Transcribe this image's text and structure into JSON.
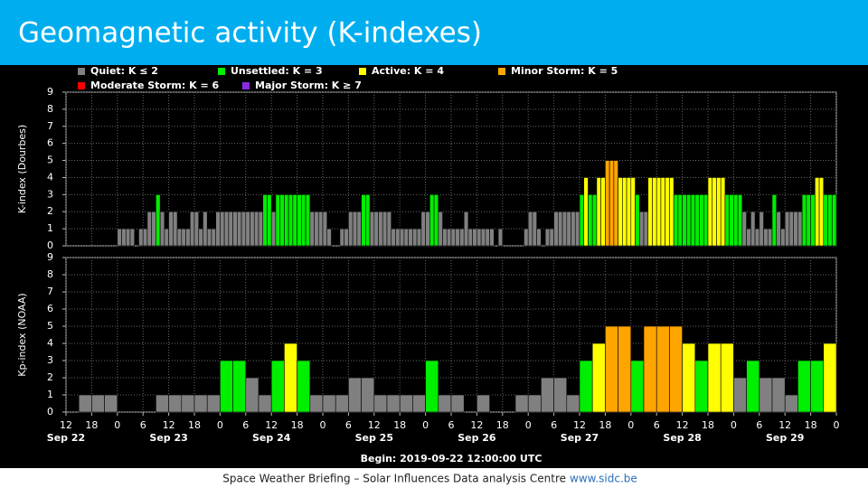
{
  "header": {
    "title": "Geomagnetic activity (K-indexes)"
  },
  "legend": [
    {
      "label": "Quiet: K ≤ 2",
      "color": "#808080"
    },
    {
      "label": "Unsettled: K = 3",
      "color": "#00ee00"
    },
    {
      "label": "Active: K = 4",
      "color": "#ffff00"
    },
    {
      "label": "Minor Storm: K = 5",
      "color": "#ffa500"
    },
    {
      "label": "Moderate Storm: K = 6",
      "color": "#ff0000"
    },
    {
      "label": "Major Storm: K ≥ 7",
      "color": "#8a2be2"
    }
  ],
  "chart_data": [
    {
      "type": "bar",
      "ylabel": "K-index (Dourbes)",
      "values": [
        0,
        0,
        0,
        0,
        0,
        0,
        0,
        0,
        0,
        0,
        0,
        0,
        1,
        1,
        1,
        1,
        0,
        1,
        1,
        2,
        2,
        3,
        2,
        1,
        2,
        2,
        1,
        1,
        1,
        2,
        2,
        1,
        2,
        1,
        1,
        2,
        2,
        2,
        2,
        2,
        2,
        2,
        2,
        2,
        2,
        2,
        3,
        3,
        2,
        3,
        3,
        3,
        3,
        3,
        3,
        3,
        3,
        2,
        2,
        2,
        2,
        1,
        0,
        0,
        1,
        1,
        2,
        2,
        2,
        3,
        3,
        2,
        2,
        2,
        2,
        2,
        1,
        1,
        1,
        1,
        1,
        1,
        1,
        2,
        2,
        3,
        3,
        2,
        1,
        1,
        1,
        1,
        1,
        2,
        1,
        1,
        1,
        1,
        1,
        1,
        0,
        1,
        0,
        0,
        0,
        0,
        0,
        1,
        2,
        2,
        1,
        0,
        1,
        1,
        2,
        2,
        2,
        2,
        2,
        2,
        3,
        4,
        3,
        3,
        4,
        4,
        5,
        5,
        5,
        4,
        4,
        4,
        4,
        3,
        2,
        2,
        4,
        4,
        4,
        4,
        4,
        4,
        3,
        3,
        3,
        3,
        3,
        3,
        3,
        3,
        4,
        4,
        4,
        4,
        3,
        3,
        3,
        3,
        2,
        1,
        2,
        1,
        2,
        1,
        1,
        3,
        2,
        1,
        2,
        2,
        2,
        2,
        3,
        3,
        3,
        4,
        4,
        3,
        3,
        3
      ],
      "ylim": [
        0,
        9
      ],
      "yticks": [
        0,
        1,
        2,
        3,
        4,
        5,
        6,
        7,
        8,
        9
      ],
      "xlim": [
        0,
        180
      ],
      "xticks": [
        0,
        6,
        12,
        18,
        24,
        30,
        36,
        42,
        48,
        54,
        60,
        66,
        72,
        78,
        84,
        90,
        96,
        102,
        108,
        114,
        120,
        126,
        132,
        138,
        144,
        150,
        156,
        162,
        168,
        174,
        180
      ],
      "grid": true
    },
    {
      "type": "bar",
      "ylabel": "Kp-index (NOAA)",
      "values": [
        0,
        1,
        1,
        1,
        0,
        0,
        0,
        1,
        1,
        1,
        1,
        1,
        3,
        3,
        2,
        1,
        3,
        4,
        3,
        1,
        1,
        1,
        2,
        2,
        1,
        1,
        1,
        1,
        3,
        1,
        1,
        0,
        1,
        0,
        0,
        1,
        1,
        2,
        2,
        1,
        3,
        4,
        5,
        5,
        3,
        5,
        5,
        5,
        4,
        3,
        4,
        4,
        2,
        3,
        2,
        2,
        1,
        3,
        3,
        4
      ],
      "ylim": [
        0,
        9
      ],
      "yticks": [
        0,
        1,
        2,
        3,
        4,
        5,
        6,
        7,
        8,
        9
      ],
      "xlim": [
        0,
        180
      ],
      "xticks": [
        {
          "value": 0,
          "label": "12"
        },
        {
          "value": 6,
          "label": "18"
        },
        {
          "value": 12,
          "label": "0"
        },
        {
          "value": 18,
          "label": "6"
        },
        {
          "value": 24,
          "label": "12"
        },
        {
          "value": 30,
          "label": "18"
        },
        {
          "value": 36,
          "label": "0"
        },
        {
          "value": 42,
          "label": "6"
        },
        {
          "value": 48,
          "label": "12"
        },
        {
          "value": 54,
          "label": "18"
        },
        {
          "value": 60,
          "label": "0"
        },
        {
          "value": 66,
          "label": "6"
        },
        {
          "value": 72,
          "label": "12"
        },
        {
          "value": 78,
          "label": "18"
        },
        {
          "value": 84,
          "label": "0"
        },
        {
          "value": 90,
          "label": "6"
        },
        {
          "value": 96,
          "label": "12"
        },
        {
          "value": 102,
          "label": "18"
        },
        {
          "value": 108,
          "label": "0"
        },
        {
          "value": 114,
          "label": "6"
        },
        {
          "value": 120,
          "label": "12"
        },
        {
          "value": 126,
          "label": "18"
        },
        {
          "value": 132,
          "label": "0"
        },
        {
          "value": 138,
          "label": "6"
        },
        {
          "value": 144,
          "label": "12"
        },
        {
          "value": 150,
          "label": "18"
        },
        {
          "value": 156,
          "label": "0"
        },
        {
          "value": 162,
          "label": "6"
        },
        {
          "value": 168,
          "label": "12"
        },
        {
          "value": 174,
          "label": "18"
        },
        {
          "value": 180,
          "label": "0"
        }
      ],
      "day_labels": [
        {
          "value": 0,
          "label": "Sep 22"
        },
        {
          "value": 24,
          "label": "Sep 23"
        },
        {
          "value": 48,
          "label": "Sep 24"
        },
        {
          "value": 72,
          "label": "Sep 25"
        },
        {
          "value": 96,
          "label": "Sep 26"
        },
        {
          "value": 120,
          "label": "Sep 27"
        },
        {
          "value": 144,
          "label": "Sep 28"
        },
        {
          "value": 168,
          "label": "Sep 29"
        }
      ],
      "xlabel": "Begin: 2019-09-22 12:00:00 UTC",
      "grid": true
    }
  ],
  "footer": {
    "text": "Space Weather Briefing – Solar Influences Data analysis Centre",
    "link": "www.sidc.be"
  }
}
